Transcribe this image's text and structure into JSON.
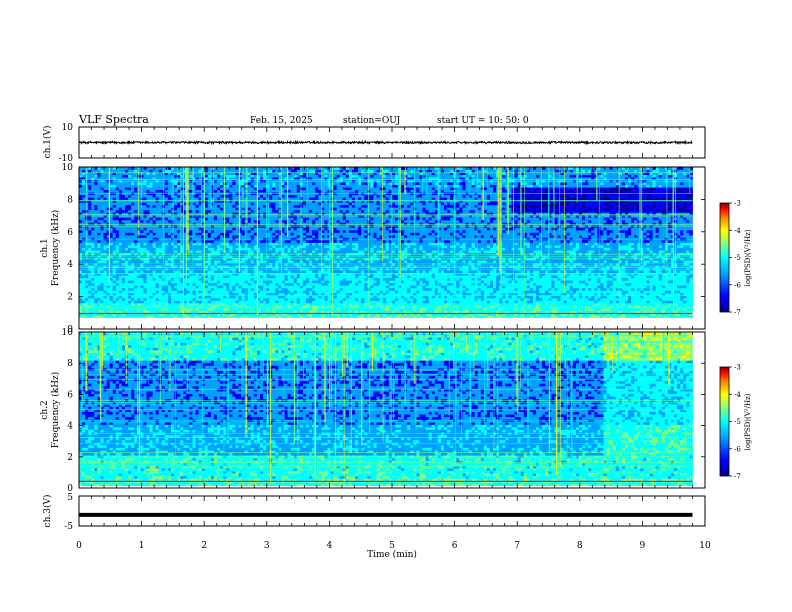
{
  "header": {
    "title": "VLF Spectra",
    "date": "Feb. 15, 2025",
    "station": "station=OUJ",
    "start": "start UT = 10: 50: 0"
  },
  "colors": {
    "jet": [
      "#00008f",
      "#0000ff",
      "#00a0ff",
      "#00ffff",
      "#80ff80",
      "#ffff00",
      "#ff8000",
      "#ff0000",
      "#800000"
    ],
    "background": "#ffffff",
    "axis": "#000000"
  },
  "chart_data": [
    {
      "type": "line",
      "name": "ch1-waveform",
      "ylabel": "ch.1(V)",
      "ylim": [
        -10,
        10
      ],
      "yticks": [
        "10",
        "-10"
      ],
      "xlim": [
        0,
        10
      ],
      "amplitude_approx": 0.8
    },
    {
      "type": "heatmap",
      "name": "ch1-spectrogram",
      "ylabel": [
        "ch.1",
        "Frequency (kHz)"
      ],
      "xlim": [
        0,
        9.8
      ],
      "ylim": [
        0,
        10
      ],
      "yticks": [
        "0",
        "2",
        "4",
        "6",
        "8",
        "10"
      ],
      "colorbar": {
        "label": "log(PSD)(V²/Hz)",
        "range": [
          -7,
          -3
        ],
        "ticks": [
          "-3",
          "-4",
          "-5",
          "-6",
          "-7"
        ]
      }
    },
    {
      "type": "heatmap",
      "name": "ch2-spectrogram",
      "ylabel": [
        "ch.2",
        "Frequency (kHz)"
      ],
      "xlim": [
        0,
        9.8
      ],
      "ylim": [
        0,
        10
      ],
      "yticks": [
        "0",
        "2",
        "4",
        "6",
        "8",
        "10"
      ],
      "colorbar": {
        "label": "log(PSD)(V²/Hz)",
        "range": [
          -7,
          -3
        ],
        "ticks": [
          "-3",
          "-4",
          "-5",
          "-6",
          "-7"
        ]
      }
    },
    {
      "type": "line",
      "name": "ch3-waveform",
      "ylabel": "ch.3(V)",
      "ylim": [
        -5,
        5
      ],
      "yticks": [
        "5",
        "-5"
      ],
      "x": [
        0,
        9.8
      ],
      "y": [
        -1.3,
        -1.3
      ]
    }
  ],
  "xaxis": {
    "label": "Time (min)",
    "range": [
      0,
      10
    ],
    "ticks": [
      "0",
      "1",
      "2",
      "3",
      "4",
      "5",
      "6",
      "7",
      "8",
      "9",
      "10"
    ]
  }
}
